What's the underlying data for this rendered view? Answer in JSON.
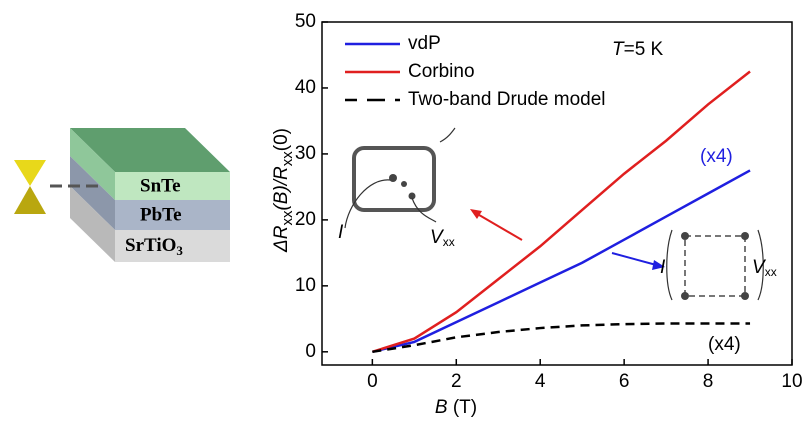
{
  "chart_data": {
    "type": "line",
    "xlabel_parts": [
      "B",
      " (T)"
    ],
    "ylabel_parts": [
      "ΔR",
      "xx",
      "(B)/R",
      "xx",
      "(0)"
    ],
    "x": [
      0,
      1,
      2,
      3,
      4,
      5,
      6,
      7,
      8,
      9
    ],
    "series": [
      {
        "name": "vdP",
        "color": "#1f1fe0",
        "linestyle": "solid",
        "values": [
          0,
          1.5,
          4.5,
          7.5,
          10.5,
          13.5,
          17,
          20.5,
          24,
          27.5
        ]
      },
      {
        "name": "Corbino",
        "color": "#e01f1f",
        "linestyle": "solid",
        "values": [
          0,
          2,
          6,
          11,
          16,
          21.5,
          27,
          32,
          37.5,
          42.5
        ]
      },
      {
        "name": "Two-band Drude model",
        "color": "#000000",
        "linestyle": "dashed",
        "values": [
          0,
          1,
          2.2,
          3,
          3.6,
          4,
          4.2,
          4.3,
          4.3,
          4.3
        ]
      }
    ],
    "xlim": [
      -1.2,
      10
    ],
    "xticks": [
      0,
      2,
      4,
      6,
      8,
      10
    ],
    "ylim": [
      -2,
      50
    ],
    "yticks": [
      0,
      10,
      20,
      30,
      40,
      50
    ],
    "annotations": {
      "temperature_parts": [
        "T",
        "=5 K"
      ],
      "vdp_scale": "(x4)",
      "drude_scale": "(x4)",
      "corbino_voltage_parts": [
        "V",
        "xx"
      ],
      "vdp_voltage_parts": [
        "V",
        "xx"
      ],
      "current_left": "I",
      "current_right": "I"
    },
    "layers": [
      "SnTe",
      "PbTe",
      [
        "SrTiO",
        "3"
      ]
    ]
  }
}
